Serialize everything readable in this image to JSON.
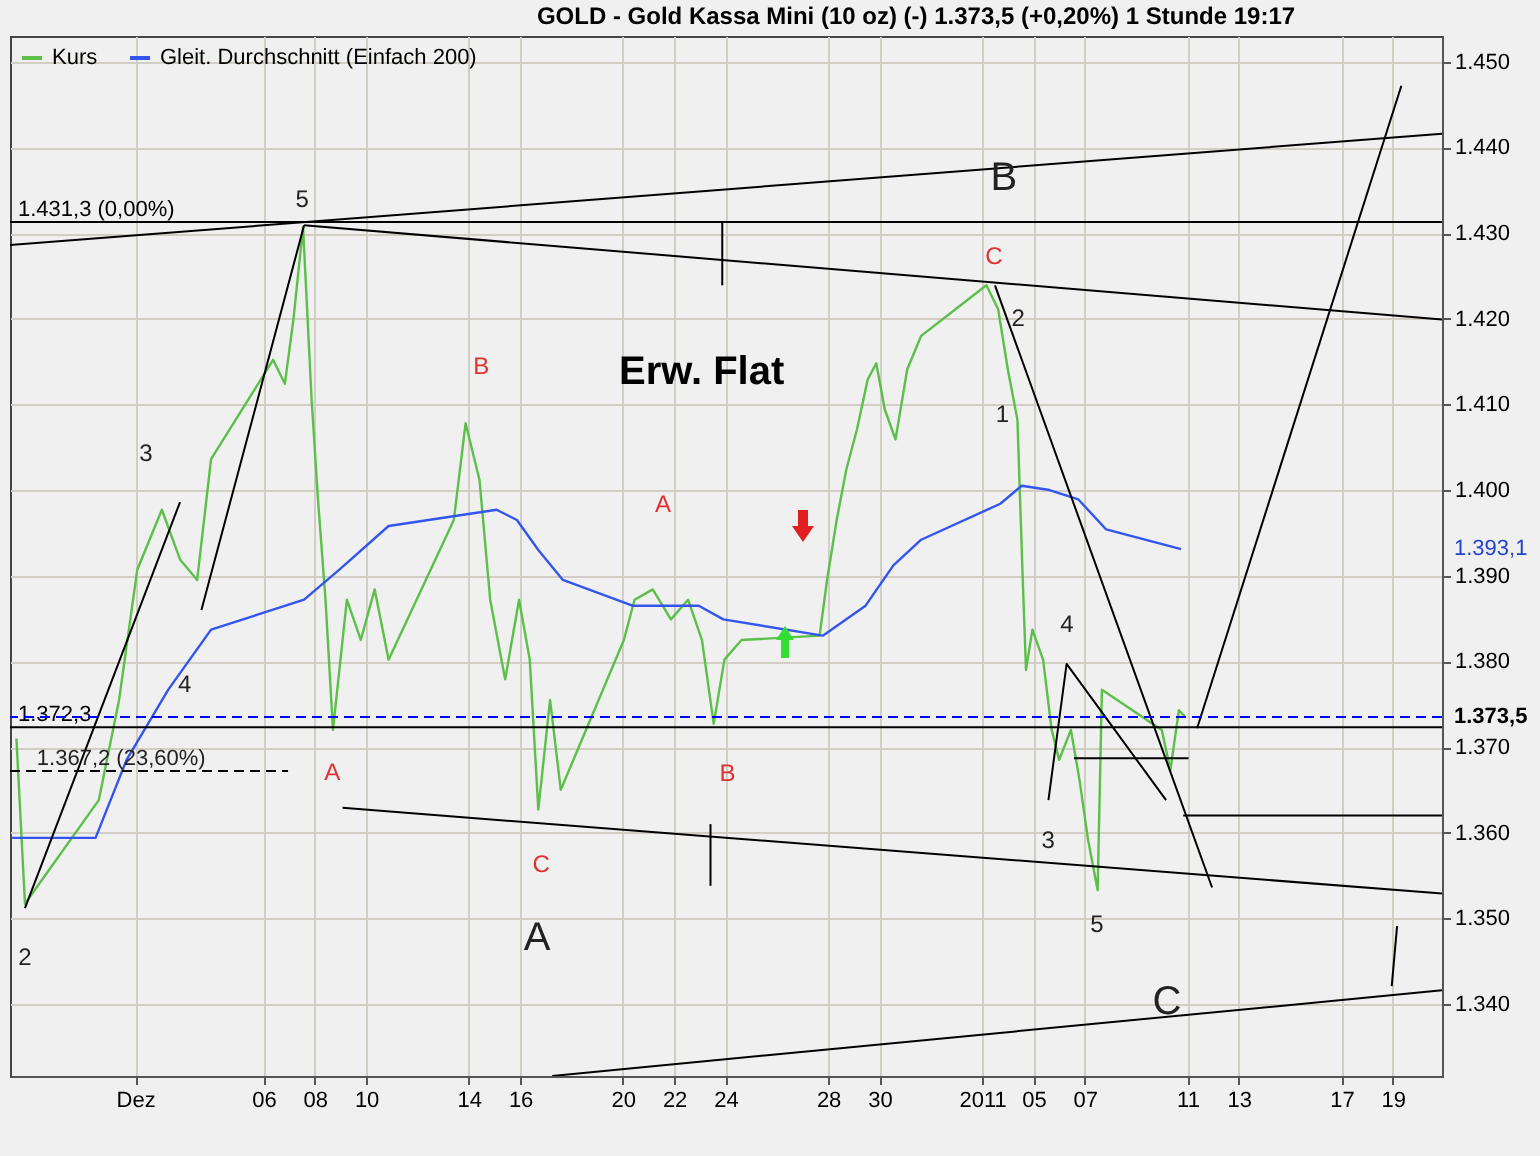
{
  "chart_data": {
    "type": "line",
    "title": "GOLD - Gold Kassa Mini (10 oz) (-)   1.373,5 (+0,20%)   1 Stunde  19:17",
    "xlim": [
      "2010-11-26T03:00",
      "2011-01-20T22:00"
    ],
    "ylim": [
      1331.6,
      1453
    ],
    "xticks": [
      {
        "value": "2010-12-01",
        "label": "Dez"
      },
      {
        "value": "2010-12-06",
        "label": "06"
      },
      {
        "value": "2010-12-08",
        "label": "08"
      },
      {
        "value": "2010-12-10",
        "label": "10"
      },
      {
        "value": "2010-12-14",
        "label": "14"
      },
      {
        "value": "2010-12-16",
        "label": "16"
      },
      {
        "value": "2010-12-20",
        "label": "20"
      },
      {
        "value": "2010-12-22",
        "label": "22"
      },
      {
        "value": "2010-12-24",
        "label": "24"
      },
      {
        "value": "2010-12-28",
        "label": "28"
      },
      {
        "value": "2010-12-30",
        "label": "30"
      },
      {
        "value": "2011-01-03",
        "label": "2011"
      },
      {
        "value": "2011-01-05",
        "label": "05"
      },
      {
        "value": "2011-01-07",
        "label": "07"
      },
      {
        "value": "2011-01-11",
        "label": "11"
      },
      {
        "value": "2011-01-13",
        "label": "13"
      },
      {
        "value": "2011-01-17",
        "label": "17"
      },
      {
        "value": "2011-01-19",
        "label": "19"
      }
    ],
    "yticks": [
      {
        "value": 1340,
        "label": "1.340"
      },
      {
        "value": 1350,
        "label": "1.350"
      },
      {
        "value": 1360,
        "label": "1.360"
      },
      {
        "value": 1370,
        "label": "1.370"
      },
      {
        "value": 1380,
        "label": "1.380"
      },
      {
        "value": 1390,
        "label": "1.390"
      },
      {
        "value": 1400,
        "label": "1.400"
      },
      {
        "value": 1410,
        "label": "1.410"
      },
      {
        "value": 1420,
        "label": "1.420"
      },
      {
        "value": 1430,
        "label": "1.430"
      },
      {
        "value": 1440,
        "label": "1.440"
      },
      {
        "value": 1450,
        "label": "1.450"
      }
    ],
    "grid": true,
    "legend": "top left",
    "series": [
      {
        "name": "Kurs",
        "color": "#5cbf4a",
        "x": [
          "2010-11-26T09:00",
          "2010-11-26T17:00",
          "2010-11-29T14:00",
          "2010-11-30T09:00",
          "2010-12-01T02:00",
          "2010-12-02T01:00",
          "2010-12-02T18:00",
          "2010-12-03T10:00",
          "2010-12-03T23:00",
          "2010-12-06T09:00",
          "2010-12-06T20:00",
          "2010-12-07T04:00",
          "2010-12-07T13:00",
          "2010-12-07T21:00",
          "2010-12-08T03:00",
          "2010-12-08T10:00",
          "2010-12-08T17:00",
          "2010-12-09T06:00",
          "2010-12-09T19:00",
          "2010-12-10T08:00",
          "2010-12-10T21:00",
          "2010-12-13T10:00",
          "2010-12-13T21:00",
          "2010-12-14T10:00",
          "2010-12-14T20:00",
          "2010-12-15T10:00",
          "2010-12-15T23:00",
          "2010-12-16T09:00",
          "2010-12-16T17:00",
          "2010-12-17T04:00",
          "2010-12-17T14:00",
          "2010-12-20T01:00",
          "2010-12-20T11:00",
          "2010-12-21T04:00",
          "2010-12-21T21:00",
          "2010-12-22T13:00",
          "2010-12-23T02:00",
          "2010-12-23T13:00",
          "2010-12-23T23:00",
          "2010-12-24T15:00",
          "2010-12-27T16:00",
          "2010-12-27T23:00",
          "2010-12-28T08:00",
          "2010-12-28T17:00",
          "2010-12-29T03:00",
          "2010-12-29T13:00",
          "2010-12-29T21:00",
          "2010-12-30T05:00",
          "2010-12-30T15:00",
          "2010-12-31T02:00",
          "2010-12-31T15:00",
          "2011-01-03T04:00",
          "2011-01-03T15:00",
          "2011-01-04T00:00",
          "2011-01-04T09:00",
          "2011-01-04T14:00",
          "2011-01-04T17:00",
          "2011-01-04T23:00",
          "2011-01-05T09:00",
          "2011-01-05T17:00",
          "2011-01-06T00:00",
          "2011-01-06T11:00",
          "2011-01-06T19:00",
          "2011-01-07T03:00",
          "2011-01-07T12:00",
          "2011-01-07T16:00",
          "2011-01-10T00:00",
          "2011-01-10T08:00",
          "2011-01-10T16:00",
          "2011-01-10T22:00"
        ],
        "values": [
          1371,
          1351.7,
          1363.8,
          1375.5,
          1390.7,
          1397.7,
          1391.9,
          1389.5,
          1403.6,
          1415.2,
          1412.4,
          1419.9,
          1430.7,
          1410.6,
          1398.9,
          1387.2,
          1372,
          1387.2,
          1382.5,
          1388.4,
          1380.2,
          1396.5,
          1407.8,
          1401.2,
          1387.2,
          1377.9,
          1387.2,
          1380.2,
          1362.7,
          1375.5,
          1365,
          1382.5,
          1387.2,
          1388.4,
          1384.9,
          1387.2,
          1382.5,
          1372.7,
          1380.2,
          1382.5,
          1383,
          1389.5,
          1396.5,
          1402.4,
          1407.1,
          1412.9,
          1414.8,
          1409.4,
          1405.9,
          1414.1,
          1418,
          1423.9,
          1421.1,
          1414.1,
          1408.2,
          1389.5,
          1379,
          1383.7,
          1380.2,
          1372,
          1368.5,
          1372,
          1366.2,
          1359.2,
          1353.3,
          1376.7,
          1372,
          1367.3,
          1374.3,
          1373.5
        ]
      },
      {
        "name": "Gleit. Durchschnitt (Einfach 200)",
        "color": "#3355ee",
        "x": [
          "2010-11-26T05:00",
          "2010-11-29T11:00",
          "2010-11-30T16:00",
          "2010-12-02T07:00",
          "2010-12-03T23:00",
          "2010-12-07T14:00",
          "2010-12-08T23:00",
          "2010-12-10T21:00",
          "2010-12-15T02:00",
          "2010-12-15T21:00",
          "2010-12-16T17:00",
          "2010-12-17T16:00",
          "2010-12-20T09:00",
          "2010-12-22T23:00",
          "2010-12-23T22:00",
          "2010-12-27T19:00",
          "2010-12-29T11:00",
          "2010-12-30T13:00",
          "2010-12-31T15:00",
          "2011-01-03T17:00",
          "2011-01-04T13:00",
          "2011-01-05T15:00",
          "2011-01-06T18:00",
          "2011-01-07T20:00",
          "2011-01-10T18:00"
        ],
        "values": [
          1359.4,
          1359.4,
          1368.5,
          1376.7,
          1383.7,
          1387.2,
          1390.7,
          1395.8,
          1397.7,
          1396.5,
          1393,
          1389.5,
          1386.5,
          1386.5,
          1384.9,
          1383,
          1386.5,
          1391.2,
          1394.2,
          1398.4,
          1400.5,
          1400,
          1398.9,
          1395.4,
          1393.1
        ]
      },
      {
        "color": "#000000",
        "x": [
          "2010-11-26T03:00",
          "2011-01-20T22:00"
        ],
        "values": [
          1428.6,
          1441.6
        ]
      },
      {
        "color": "#000000",
        "x": [
          "2010-12-07T14:00",
          "2011-01-20T22:00"
        ],
        "values": [
          1430.9,
          1419.9
        ]
      },
      {
        "color": "#000000",
        "x": [
          "2010-12-09T02:00",
          "2011-01-20T22:00"
        ],
        "values": [
          1362.9,
          1352.9
        ]
      },
      {
        "color": "#000000",
        "x": [
          "2010-12-17T06:00",
          "2011-01-20T22:00"
        ],
        "values": [
          1331.6,
          1341.6
        ]
      },
      {
        "color": "#000000",
        "x": [
          "2010-11-26T17:00",
          "2010-12-02T18:00"
        ],
        "values": [
          1351.2,
          1398.6
        ]
      },
      {
        "color": "#000000",
        "x": [
          "2010-12-03T14:00",
          "2010-12-07T14:00"
        ],
        "values": [
          1386,
          1430.9
        ]
      },
      {
        "color": "#000000",
        "x": [
          "2010-12-23T21:00",
          "2010-12-23T21:00"
        ],
        "values": [
          1431.4,
          1423.9
        ]
      },
      {
        "color": "#000000",
        "x": [
          "2010-12-23T10:00",
          "2010-12-23T10:00"
        ],
        "values": [
          1361,
          1353.8
        ]
      },
      {
        "color": "#000000",
        "x": [
          "2011-01-03T12:00",
          "2011-01-11T23:00"
        ],
        "values": [
          1423.9,
          1353.6
        ]
      },
      {
        "color": "#000000",
        "x": [
          "2011-01-06T07:00",
          "2011-01-10T04:00",
          "2011-01-05T14:00"
        ],
        "values": [
          1379.7,
          1363.8,
          1363.8
        ]
      },
      {
        "color": "#000000",
        "x": [
          "2011-01-06T14:00",
          "2011-01-11T01:00"
        ],
        "values": [
          1368.7,
          1368.7
        ]
      },
      {
        "color": "#000000",
        "x": [
          "2011-01-10T20:00",
          "2011-01-20T22:00"
        ],
        "values": [
          1362,
          1362
        ]
      },
      {
        "color": "#000000",
        "x": [
          "2011-01-11T09:00",
          "2011-01-19T08:00"
        ],
        "values": [
          1372.2,
          1447.2
        ]
      },
      {
        "color": "#000000",
        "x": [
          "2011-01-18T23:00",
          "2011-01-19T04:00"
        ],
        "values": [
          1342.1,
          1349.1
        ]
      },
      {
        "color": "#000000",
        "line_style": "dashed",
        "x": [
          "2010-11-26T03:00",
          "2010-12-06T23:00"
        ],
        "values": [
          1367.2,
          1367.2
        ]
      }
    ],
    "ref_lines": [
      {
        "axis": "y",
        "value": 1431.3,
        "label": "1.431,3 (0,00%)",
        "color": "#000000"
      },
      {
        "axis": "y",
        "value": 1372.3,
        "label": "1.372,3",
        "color": "#000000"
      },
      {
        "axis": "y",
        "value": 1373.5,
        "label": "1.373,5",
        "color": "#0000ff",
        "line_style": "dashed"
      }
    ],
    "annotations": [
      {
        "text": "1.367,2 (23,60%)",
        "x": "2010-11-30T11:00",
        "y": 1367.2
      },
      "1.393,1",
      "5",
      "3",
      "4",
      "2",
      "B",
      "A",
      "A",
      "C",
      "B",
      "C",
      "2",
      "1",
      "4",
      "3",
      "5",
      "A",
      "B",
      "C",
      "Erw. Flat"
    ]
  }
}
